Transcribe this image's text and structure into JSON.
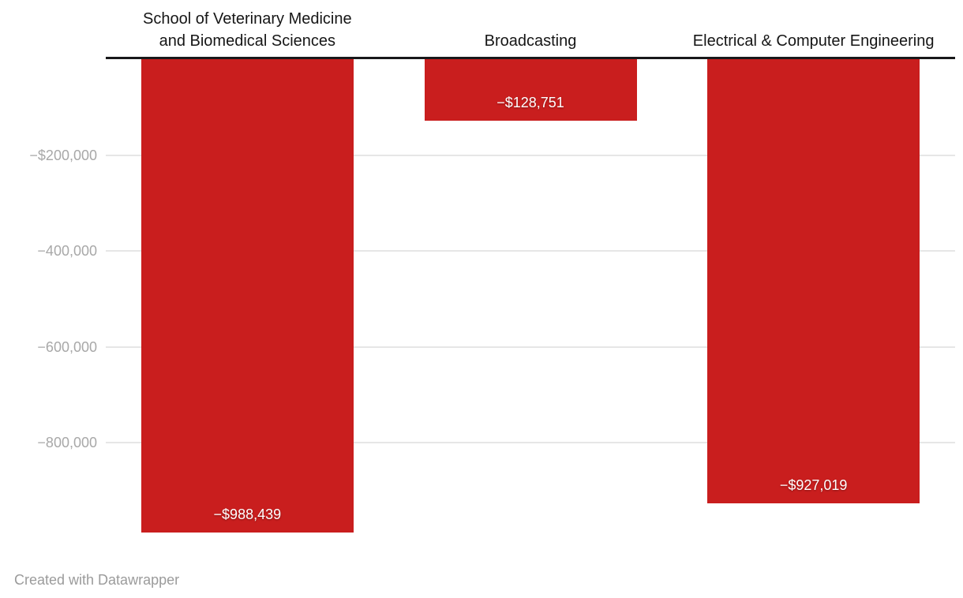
{
  "chart_data": {
    "type": "bar",
    "orientation": "vertical",
    "categories": [
      "School of Veterinary Medicine and Biomedical Sciences",
      "Broadcasting",
      "Electrical & Computer Engineering"
    ],
    "category_lines": [
      [
        "School of Veterinary Medicine",
        "and Biomedical Sciences"
      ],
      [
        "Broadcasting"
      ],
      [
        "Electrical & Computer Engineering"
      ]
    ],
    "values": [
      -988439,
      -128751,
      -927019
    ],
    "bar_labels": [
      "−$988,439",
      "−$128,751",
      "−$927,019"
    ],
    "y_ticks": [
      {
        "value": -200000,
        "label": "−$200,000"
      },
      {
        "value": -400000,
        "label": "−400,000"
      },
      {
        "value": -600000,
        "label": "−600,000"
      },
      {
        "value": -800000,
        "label": "−800,000"
      }
    ],
    "ylim": [
      -1000000,
      0
    ],
    "grid": true,
    "legend": "none",
    "title": ""
  },
  "colors": {
    "bar": "#c91e1e",
    "baseline": "#18181a",
    "gridline": "#e6e6e6",
    "header_text": "#161616",
    "tick_text": "#a8a8a8",
    "value_text": "#ffffff",
    "attribution_text": "#9b9b9b"
  },
  "footer": {
    "attribution": "Created with Datawrapper"
  }
}
